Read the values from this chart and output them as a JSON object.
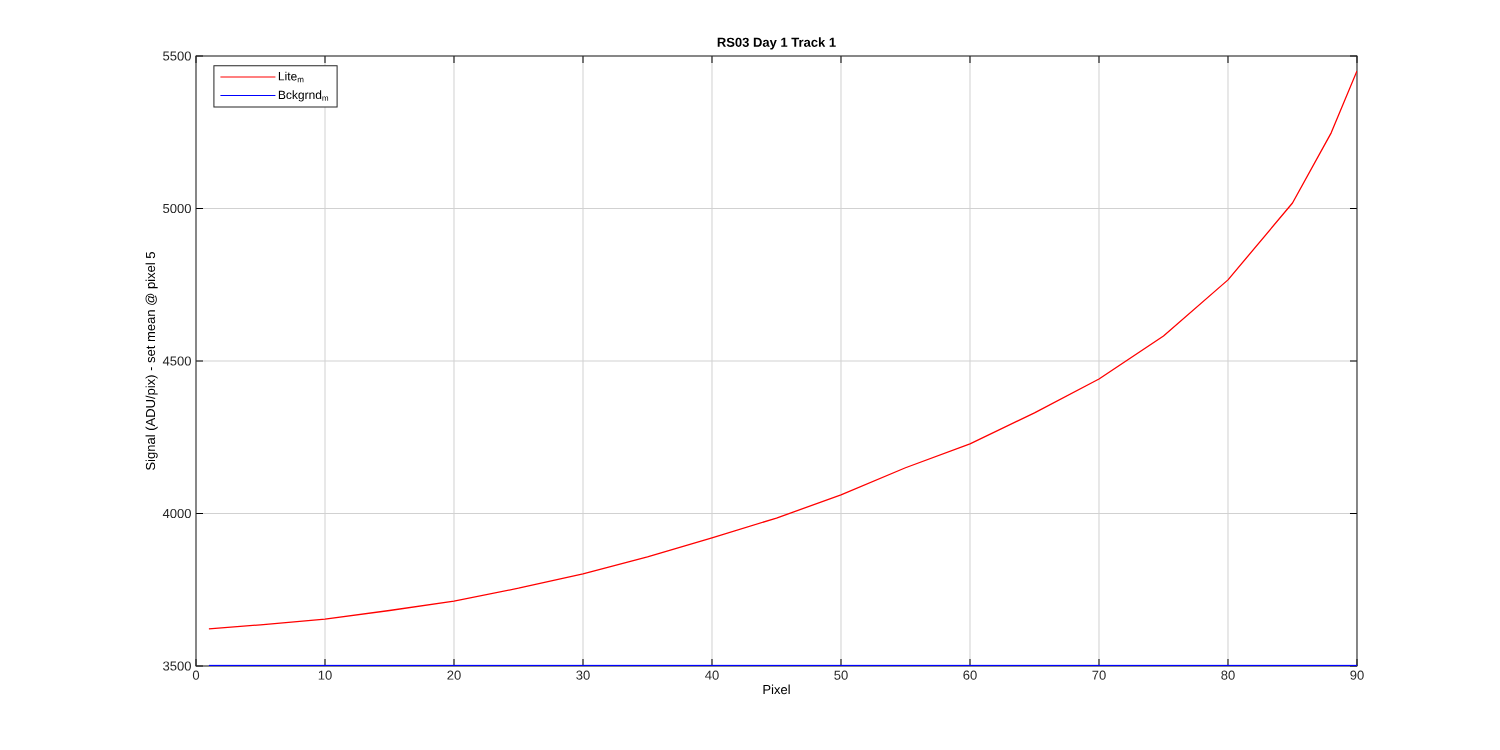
{
  "chart_data": {
    "type": "line",
    "title": "RS03 Day 1 Track 1",
    "xlabel": "Pixel",
    "ylabel": "Signal (ADU/pix) - set mean @ pixel 5",
    "xlim": [
      0,
      90
    ],
    "ylim": [
      3500,
      5500
    ],
    "xticks": [
      0,
      10,
      20,
      30,
      40,
      50,
      60,
      70,
      80,
      90
    ],
    "yticks": [
      3500,
      4000,
      4500,
      5000,
      5500
    ],
    "grid": true,
    "legend": "top left",
    "line_style": "solid",
    "series": [
      {
        "name": "Lite$_{m}$",
        "color": "#ff0000",
        "x": [
          1,
          5,
          10,
          15,
          20,
          25,
          30,
          35,
          40,
          45,
          50,
          55,
          60,
          65,
          70,
          75,
          80,
          85,
          88,
          90
        ],
        "values": [
          3622,
          3635,
          3654,
          3682,
          3713,
          3755,
          3802,
          3858,
          3920,
          3985,
          4061,
          4150,
          4228,
          4330,
          4441,
          4582,
          4766,
          5018,
          5248,
          5451
        ]
      },
      {
        "name": "Bckgrnd$_{m}$",
        "color": "#0000ff",
        "x": [
          1,
          10,
          20,
          30,
          40,
          50,
          60,
          70,
          80,
          90
        ],
        "values": [
          3502,
          3502,
          3502,
          3502,
          3502,
          3502,
          3502,
          3502,
          3502,
          3502
        ]
      }
    ]
  }
}
